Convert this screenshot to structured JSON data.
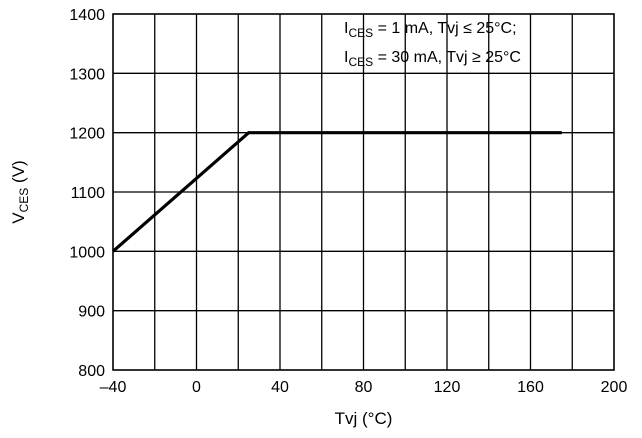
{
  "chart_data": {
    "type": "line",
    "xlabel": "Tvj (°C)",
    "ylabel": {
      "main": "V",
      "sub": "CES",
      "unit": " (V)"
    },
    "xlim": [
      -40,
      200
    ],
    "ylim": [
      800,
      1400
    ],
    "x_ticks": [
      -40,
      0,
      40,
      80,
      120,
      160,
      200
    ],
    "x_tick_labels": [
      "–40",
      "0",
      "40",
      "80",
      "120",
      "160",
      "200"
    ],
    "y_ticks": [
      800,
      900,
      1000,
      1100,
      1200,
      1300,
      1400
    ],
    "y_tick_labels": [
      "800",
      "900",
      "1000",
      "1100",
      "1200",
      "1300",
      "1400"
    ],
    "x_grid_step": 20,
    "y_grid_step": 100,
    "grid": true,
    "series": [
      {
        "x": [
          -40,
          25,
          175
        ],
        "y": [
          1000,
          1200,
          1200
        ],
        "color": "#000000"
      }
    ],
    "annotations": [
      {
        "main": "I",
        "sub": "CES",
        "rest": " = 1 mA, Tvj ≤ 25°C;"
      },
      {
        "main": "I",
        "sub": "CES",
        "rest": " = 30 mA, Tvj ≥ 25°C"
      }
    ]
  }
}
